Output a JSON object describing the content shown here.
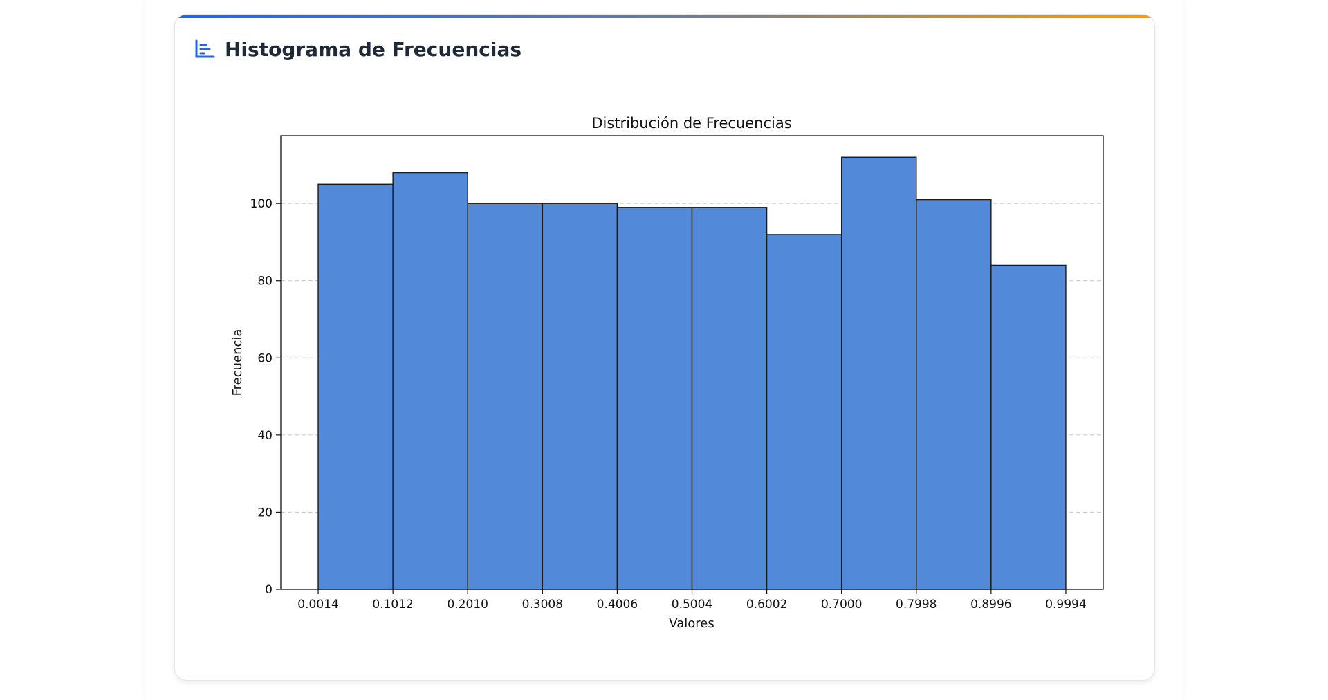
{
  "card": {
    "title": "Histograma de Frecuencias",
    "icon": "bar-chart-icon",
    "accent_colors": [
      "#2563eb",
      "#f59e0b"
    ]
  },
  "chart_data": {
    "type": "bar",
    "title": "Distribución de Frecuencias",
    "xlabel": "Valores",
    "ylabel": "Frecuencia",
    "bin_edges": [
      0.0014,
      0.1012,
      0.201,
      0.3008,
      0.4006,
      0.5004,
      0.6002,
      0.7,
      0.7998,
      0.8996,
      0.9994
    ],
    "x_tick_labels": [
      "0.0014",
      "0.1012",
      "0.2010",
      "0.3008",
      "0.4006",
      "0.5004",
      "0.6002",
      "0.7000",
      "0.7998",
      "0.8996",
      "0.9994"
    ],
    "values": [
      105,
      108,
      100,
      100,
      99,
      99,
      92,
      112,
      101,
      84
    ],
    "y_ticks": [
      0,
      20,
      40,
      60,
      80,
      100
    ],
    "ylim": [
      0,
      117.6
    ],
    "grid": "y-dashed",
    "bar_color": "#528ad9",
    "edge_color": "#1a1a1a"
  }
}
